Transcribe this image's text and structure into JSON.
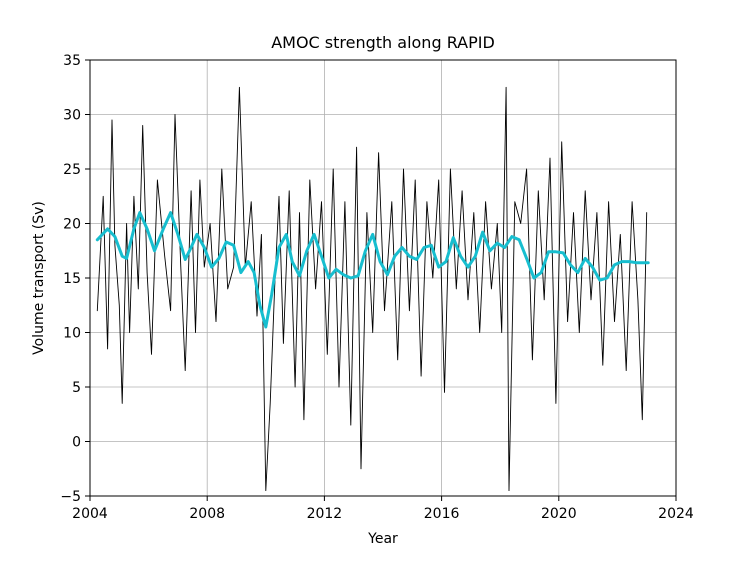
{
  "chart_data": {
    "type": "line",
    "title": "AMOC strength along RAPID",
    "xlabel": "Year",
    "ylabel": "Volume transport (Sv)",
    "xlim": [
      2004,
      2024
    ],
    "ylim": [
      -5,
      35
    ],
    "xticks": [
      2004,
      2008,
      2012,
      2016,
      2020,
      2024
    ],
    "xtick_labels": [
      "2004",
      "2008",
      "2012",
      "2016",
      "2020",
      "2024"
    ],
    "yticks": [
      -5,
      0,
      5,
      10,
      15,
      20,
      25,
      30,
      35
    ],
    "ytick_labels": [
      "−5",
      "0",
      "5",
      "10",
      "15",
      "20",
      "25",
      "30",
      "35"
    ],
    "grid": true,
    "colors": {
      "raw": "#000000",
      "smoothed": "#17becf"
    },
    "series": [
      {
        "role": "raw",
        "x": [
          2004.25,
          2004.45,
          2004.6,
          2004.75,
          2004.85,
          2005.0,
          2005.1,
          2005.25,
          2005.35,
          2005.5,
          2005.65,
          2005.8,
          2005.95,
          2006.1,
          2006.3,
          2006.55,
          2006.75,
          2006.9,
          2007.1,
          2007.25,
          2007.45,
          2007.6,
          2007.75,
          2007.9,
          2008.1,
          2008.3,
          2008.5,
          2008.7,
          2008.9,
          2009.1,
          2009.3,
          2009.5,
          2009.7,
          2009.85,
          2010.0,
          2010.15,
          2010.3,
          2010.45,
          2010.6,
          2010.8,
          2011.0,
          2011.15,
          2011.3,
          2011.5,
          2011.7,
          2011.9,
          2012.1,
          2012.3,
          2012.5,
          2012.7,
          2012.9,
          2013.1,
          2013.25,
          2013.45,
          2013.65,
          2013.85,
          2014.05,
          2014.3,
          2014.5,
          2014.7,
          2014.9,
          2015.1,
          2015.3,
          2015.5,
          2015.7,
          2015.9,
          2016.1,
          2016.3,
          2016.5,
          2016.7,
          2016.9,
          2017.1,
          2017.3,
          2017.5,
          2017.7,
          2017.9,
          2018.05,
          2018.2,
          2018.3,
          2018.5,
          2018.7,
          2018.9,
          2019.1,
          2019.3,
          2019.5,
          2019.7,
          2019.9,
          2020.1,
          2020.3,
          2020.5,
          2020.7,
          2020.9,
          2021.1,
          2021.3,
          2021.5,
          2021.7,
          2021.9,
          2022.1,
          2022.3,
          2022.5,
          2022.7,
          2022.85,
          2023.0
        ],
        "y": [
          12.0,
          22.5,
          8.5,
          29.5,
          18.0,
          12.5,
          3.5,
          20.0,
          10.0,
          22.5,
          14.0,
          29.0,
          15.5,
          8.0,
          24.0,
          17.0,
          12.0,
          30.0,
          16.0,
          6.5,
          23.0,
          10.0,
          24.0,
          16.0,
          20.0,
          11.0,
          25.0,
          14.0,
          16.0,
          32.5,
          16.0,
          22.0,
          11.5,
          19.0,
          -4.5,
          3.5,
          14.0,
          22.5,
          9.0,
          23.0,
          5.0,
          21.0,
          2.0,
          24.0,
          14.0,
          22.0,
          8.0,
          25.0,
          5.0,
          22.0,
          1.5,
          27.0,
          -2.5,
          21.0,
          10.0,
          26.5,
          12.0,
          22.0,
          7.5,
          25.0,
          12.0,
          24.0,
          6.0,
          22.0,
          15.0,
          24.0,
          4.5,
          25.0,
          14.0,
          23.0,
          13.0,
          21.0,
          10.0,
          22.0,
          14.0,
          20.0,
          10.0,
          32.5,
          -4.5,
          22.0,
          20.0,
          25.0,
          7.5,
          23.0,
          13.0,
          26.0,
          3.5,
          27.5,
          11.0,
          21.0,
          10.0,
          23.0,
          13.0,
          21.0,
          7.0,
          22.0,
          11.0,
          19.0,
          6.5,
          22.0,
          13.0,
          2.0,
          21.0
        ]
      },
      {
        "role": "smoothed",
        "x": [
          2004.25,
          2004.6,
          2004.85,
          2005.1,
          2005.25,
          2005.5,
          2005.7,
          2005.95,
          2006.2,
          2006.5,
          2006.75,
          2007.0,
          2007.25,
          2007.45,
          2007.65,
          2007.9,
          2008.15,
          2008.4,
          2008.65,
          2008.9,
          2009.15,
          2009.4,
          2009.6,
          2009.8,
          2010.0,
          2010.2,
          2010.45,
          2010.7,
          2010.9,
          2011.15,
          2011.4,
          2011.65,
          2011.9,
          2012.15,
          2012.4,
          2012.65,
          2012.9,
          2013.15,
          2013.4,
          2013.65,
          2013.9,
          2014.15,
          2014.4,
          2014.65,
          2014.9,
          2015.15,
          2015.4,
          2015.65,
          2015.9,
          2016.15,
          2016.4,
          2016.65,
          2016.9,
          2017.15,
          2017.4,
          2017.65,
          2017.9,
          2018.15,
          2018.4,
          2018.65,
          2018.9,
          2019.15,
          2019.4,
          2019.65,
          2019.9,
          2020.15,
          2020.4,
          2020.65,
          2020.9,
          2021.15,
          2021.4,
          2021.65,
          2021.9,
          2022.15,
          2022.4,
          2022.65,
          2022.9,
          2023.05
        ],
        "y": [
          18.5,
          19.5,
          18.8,
          17.0,
          16.8,
          19.5,
          21.0,
          19.5,
          17.5,
          19.5,
          21.0,
          19.0,
          16.7,
          17.8,
          19.0,
          17.8,
          16.0,
          16.8,
          18.3,
          18.0,
          15.5,
          16.5,
          15.5,
          12.5,
          10.5,
          13.5,
          17.8,
          19.0,
          16.5,
          15.2,
          17.5,
          19.0,
          17.0,
          15.0,
          15.8,
          15.3,
          15.0,
          15.2,
          17.5,
          19.0,
          16.5,
          15.3,
          17.0,
          17.8,
          17.0,
          16.7,
          17.8,
          18.0,
          16.0,
          16.5,
          18.7,
          17.0,
          16.0,
          17.0,
          19.2,
          17.5,
          18.2,
          17.8,
          18.8,
          18.5,
          16.8,
          15.0,
          15.5,
          17.4,
          17.4,
          17.3,
          16.2,
          15.5,
          16.8,
          16.0,
          14.8,
          15.0,
          16.2,
          16.5,
          16.5,
          16.4,
          16.4,
          16.4
        ]
      }
    ]
  }
}
